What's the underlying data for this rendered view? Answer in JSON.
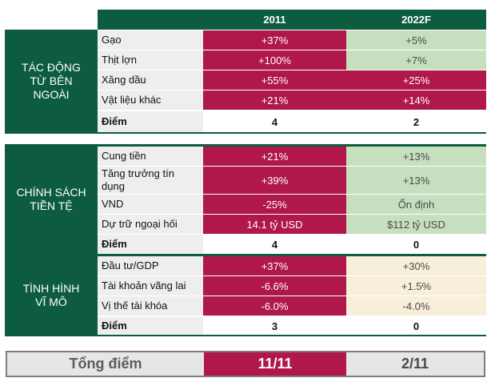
{
  "headers": {
    "col1": "2011",
    "col2": "2022F"
  },
  "sections": {
    "s1": {
      "title": "TÁC ĐỘNG TỪ BÊN NGOÀI",
      "rows": [
        {
          "label": "Gạo",
          "v2011": "+37%",
          "v2022": "+5%"
        },
        {
          "label": "Thịt lợn",
          "v2011": "+100%",
          "v2022": "+7%"
        },
        {
          "label": "Xăng dầu",
          "v2011": "+55%",
          "v2022": "+25%"
        },
        {
          "label": "Vật liệu khác",
          "v2011": "+21%",
          "v2022": "+14%"
        }
      ],
      "score": {
        "label": "Điểm",
        "v2011": "4",
        "v2022": "2"
      }
    },
    "s2": {
      "title": "CHÍNH SÁCH TIỀN TỆ",
      "rows": [
        {
          "label": "Cung tiền",
          "v2011": "+21%",
          "v2022": "+13%"
        },
        {
          "label": "Tăng trưởng tín dụng",
          "v2011": "+39%",
          "v2022": "+13%"
        },
        {
          "label": "VND",
          "v2011": "-25%",
          "v2022": "Ổn định"
        },
        {
          "label": "Dự trữ ngoại hối",
          "v2011": "14.1 tỷ USD",
          "v2022": "$112 tỷ USD"
        }
      ],
      "score": {
        "label": "Điểm",
        "v2011": "4",
        "v2022": "0"
      }
    },
    "s3": {
      "title": "TÌNH HÌNH VĨ MÔ",
      "rows": [
        {
          "label": "Đầu tư/GDP",
          "v2011": "+37%",
          "v2022": "+30%"
        },
        {
          "label": "Tài khoản vãng lai",
          "v2011": "-6.6%",
          "v2022": "+1.5%"
        },
        {
          "label": "Vị thế tài khóa",
          "v2011": "-6.0%",
          "v2022": "-4.0%"
        }
      ],
      "score": {
        "label": "Điểm",
        "v2011": "3",
        "v2022": "0"
      }
    }
  },
  "total": {
    "label": "Tổng điểm",
    "v2011": "11/11",
    "v2022": "2/11"
  },
  "colors": {
    "dark_green": "#0d5c3f",
    "crimson": "#b0174a",
    "light_green": "#c6dfbe",
    "cream": "#f7efd9",
    "label_grey": "#eeeeee"
  }
}
